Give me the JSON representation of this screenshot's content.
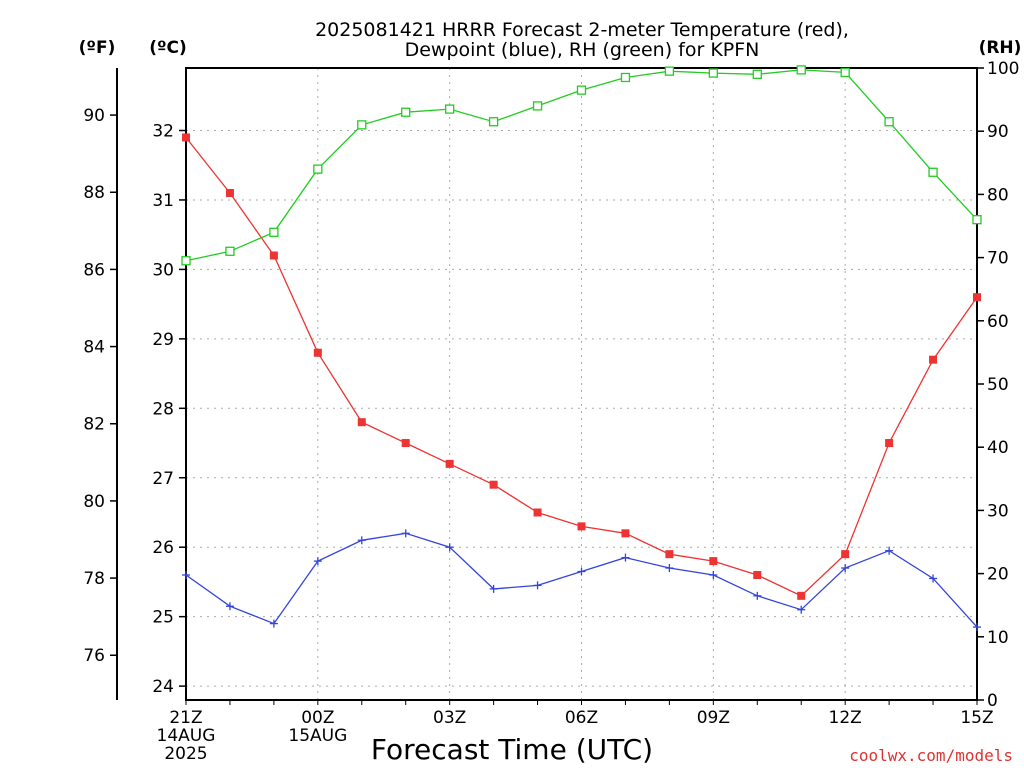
{
  "chart_data": {
    "type": "line",
    "title_line1": "2025081421 HRRR Forecast 2-meter Temperature (red),",
    "title_line2": "Dewpoint (blue), RH (green) for KPFN",
    "xlabel": "Forecast Time (UTC)",
    "unit_labels": {
      "fahrenheit": "(ºF)",
      "celsius": "(ºC)",
      "rh": "(RH)"
    },
    "x": [
      "21Z",
      "22Z",
      "23Z",
      "00Z",
      "01Z",
      "02Z",
      "03Z",
      "04Z",
      "05Z",
      "06Z",
      "07Z",
      "08Z",
      "09Z",
      "10Z",
      "11Z",
      "12Z",
      "13Z",
      "14Z",
      "15Z"
    ],
    "x_tick_labels": [
      {
        "index": 0,
        "lines": [
          "21Z",
          "14AUG",
          "2025"
        ]
      },
      {
        "index": 3,
        "lines": [
          "00Z",
          "15AUG"
        ]
      },
      {
        "index": 6,
        "lines": [
          "03Z"
        ]
      },
      {
        "index": 9,
        "lines": [
          "06Z"
        ]
      },
      {
        "index": 12,
        "lines": [
          "09Z"
        ]
      },
      {
        "index": 15,
        "lines": [
          "12Z"
        ]
      },
      {
        "index": 18,
        "lines": [
          "15Z"
        ]
      }
    ],
    "axes": {
      "celsius": {
        "range": [
          23.8,
          32.9
        ],
        "ticks": [
          24,
          25,
          26,
          27,
          28,
          29,
          30,
          31,
          32
        ]
      },
      "fahrenheit": {
        "range": [
          74.84,
          91.22
        ],
        "ticks": [
          76,
          78,
          80,
          82,
          84,
          86,
          88,
          90
        ]
      },
      "rh": {
        "range": [
          0,
          100
        ],
        "ticks": [
          0,
          10,
          20,
          30,
          40,
          50,
          60,
          70,
          80,
          90,
          100
        ]
      }
    },
    "grid": true,
    "series": [
      {
        "key": "temperature",
        "axis": "celsius",
        "color": "#ee3333",
        "marker": "filled-square",
        "values": [
          31.9,
          31.1,
          30.2,
          28.8,
          27.8,
          27.5,
          27.2,
          26.9,
          26.5,
          26.3,
          26.2,
          25.9,
          25.8,
          25.6,
          25.3,
          25.9,
          27.5,
          28.7,
          29.6
        ]
      },
      {
        "key": "dewpoint",
        "axis": "celsius",
        "color": "#3344dd",
        "marker": "plus",
        "values": [
          25.6,
          25.15,
          24.9,
          25.8,
          26.1,
          26.2,
          26.0,
          25.4,
          25.45,
          25.65,
          25.85,
          25.7,
          25.6,
          25.3,
          25.1,
          25.7,
          25.95,
          25.55,
          24.85
        ]
      },
      {
        "key": "rh",
        "axis": "rh",
        "color": "#22cc22",
        "marker": "open-square",
        "values": [
          69.5,
          71.0,
          74.0,
          84.0,
          91.0,
          93.0,
          93.5,
          91.5,
          94.0,
          96.5,
          98.5,
          99.5,
          99.2,
          99.0,
          99.7,
          99.3,
          91.5,
          83.5,
          76.0
        ]
      }
    ],
    "watermark": "coolwx.com/models",
    "colors": {
      "temperature": "#ee3333",
      "dewpoint": "#3344dd",
      "rh": "#22cc22",
      "watermark": "#dd3333",
      "grid": "#aaaaaa"
    }
  }
}
